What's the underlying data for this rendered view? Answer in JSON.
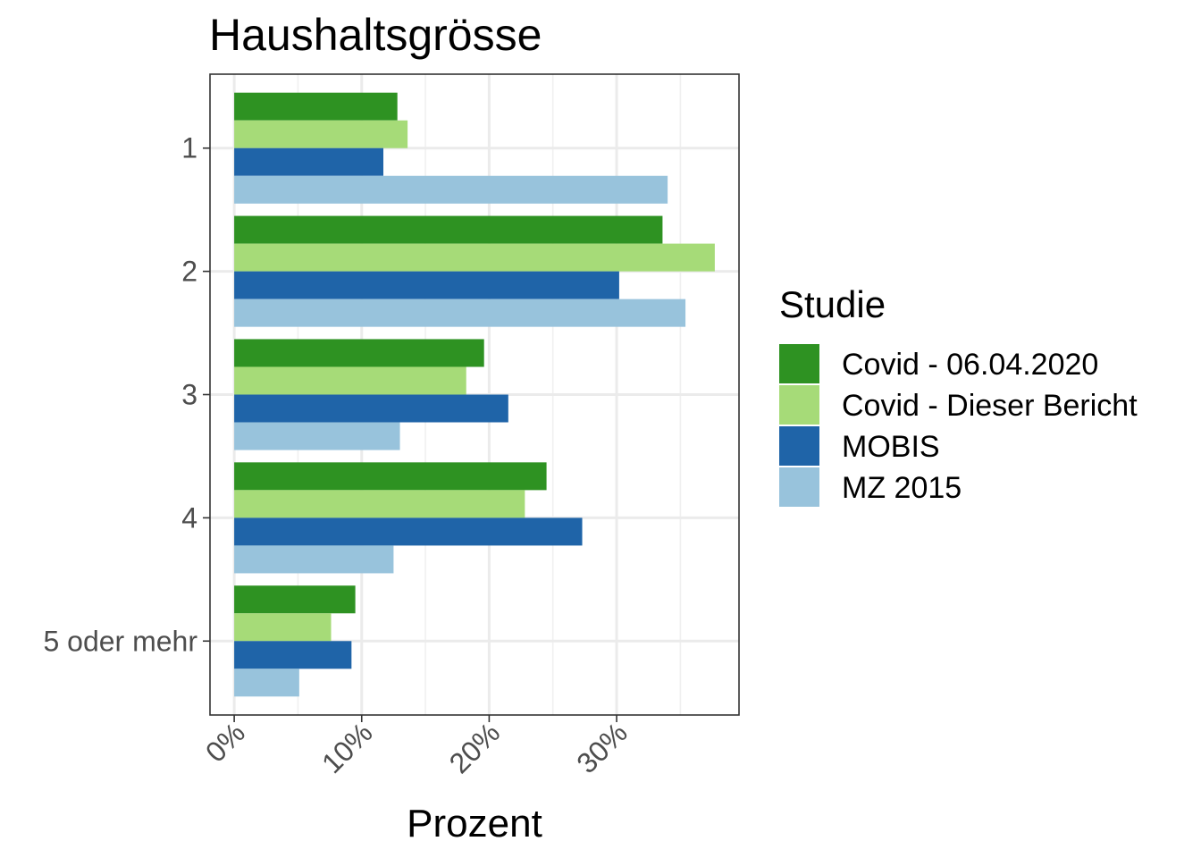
{
  "chart_data": {
    "type": "bar",
    "orientation": "horizontal",
    "title": "Haushaltsgrösse",
    "xlabel": "Prozent",
    "ylabel": "",
    "categories": [
      "1",
      "2",
      "3",
      "4",
      "5 oder mehr"
    ],
    "x_ticks": [
      "0%",
      "10%",
      "20%",
      "30%"
    ],
    "x_tick_values": [
      0,
      10,
      20,
      30
    ],
    "xlim": [
      -1.9,
      39.6
    ],
    "grid": true,
    "legend": {
      "title": "Studie",
      "position": "right"
    },
    "series": [
      {
        "name": "Covid - 06.04.2020",
        "color": "#2e9222",
        "values": [
          12.8,
          33.6,
          19.6,
          24.5,
          9.5
        ]
      },
      {
        "name": "Covid - Dieser Bericht",
        "color": "#a6db78",
        "values": [
          13.6,
          37.7,
          18.2,
          22.8,
          7.6
        ]
      },
      {
        "name": "MOBIS",
        "color": "#1f64a8",
        "values": [
          11.7,
          30.2,
          21.5,
          27.3,
          9.2
        ]
      },
      {
        "name": "MZ 2015",
        "color": "#98c3dc",
        "values": [
          34.0,
          35.4,
          13.0,
          12.5,
          5.1
        ]
      }
    ]
  }
}
